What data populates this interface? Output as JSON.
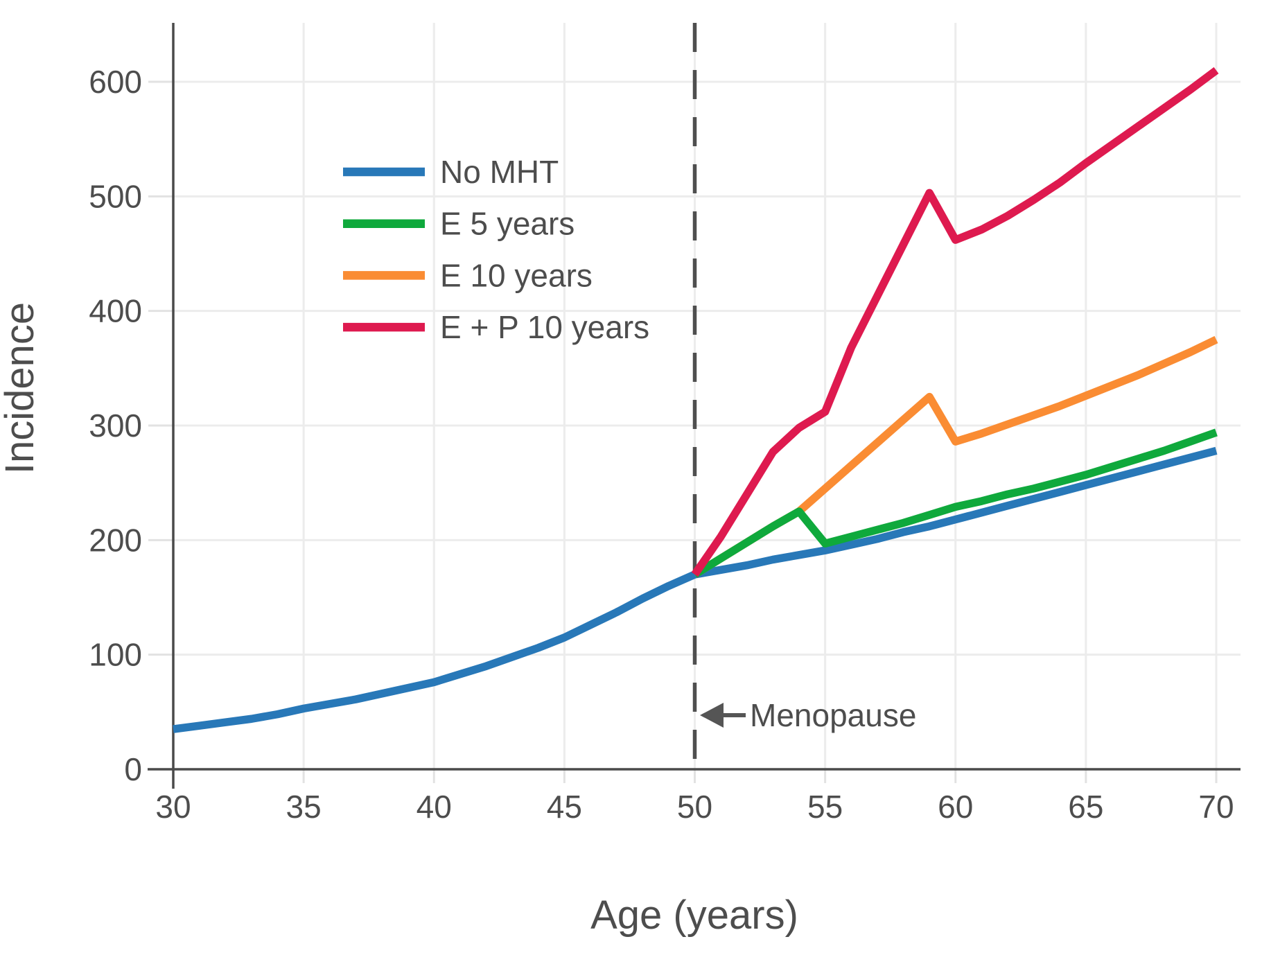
{
  "chart_data": {
    "type": "line",
    "title": "",
    "xlabel": "Age (years)",
    "ylabel": "Incidence",
    "x_ticks": [
      30,
      35,
      40,
      45,
      50,
      55,
      60,
      65,
      70
    ],
    "y_ticks": [
      0,
      100,
      200,
      300,
      400,
      500,
      600
    ],
    "xlim": [
      30,
      70.9
    ],
    "ylim": [
      0,
      651
    ],
    "grid": true,
    "legend_position": "upper-left-inside",
    "menopause_line_x": 50,
    "annotations": [
      {
        "text": "Menopause",
        "x": 50,
        "y": 47,
        "arrow": "points-left-at-dashed-line"
      }
    ],
    "series": [
      {
        "name": "No MHT",
        "color": "#2878B8",
        "points": [
          [
            30,
            35
          ],
          [
            31,
            38
          ],
          [
            32,
            41
          ],
          [
            33,
            44
          ],
          [
            34,
            48
          ],
          [
            35,
            53
          ],
          [
            36,
            57
          ],
          [
            37,
            61
          ],
          [
            38,
            66
          ],
          [
            39,
            71
          ],
          [
            40,
            76
          ],
          [
            41,
            83
          ],
          [
            42,
            90
          ],
          [
            43,
            98
          ],
          [
            44,
            106
          ],
          [
            45,
            115
          ],
          [
            46,
            126
          ],
          [
            47,
            137
          ],
          [
            48,
            149
          ],
          [
            49,
            160
          ],
          [
            50,
            170
          ],
          [
            51,
            174
          ],
          [
            52,
            178
          ],
          [
            53,
            183
          ],
          [
            54,
            187
          ],
          [
            55,
            191
          ],
          [
            56,
            196
          ],
          [
            57,
            201
          ],
          [
            58,
            207
          ],
          [
            59,
            212
          ],
          [
            60,
            218
          ],
          [
            61,
            224
          ],
          [
            62,
            230
          ],
          [
            63,
            236
          ],
          [
            64,
            242
          ],
          [
            65,
            248
          ],
          [
            66,
            254
          ],
          [
            67,
            260
          ],
          [
            68,
            266
          ],
          [
            69,
            272
          ],
          [
            70,
            278
          ]
        ]
      },
      {
        "name": "E 10 years",
        "color": "#FA8C33",
        "points": [
          [
            50,
            170
          ],
          [
            51,
            184
          ],
          [
            52,
            198
          ],
          [
            53,
            212
          ],
          [
            54,
            225
          ],
          [
            55,
            245
          ],
          [
            56,
            265
          ],
          [
            57,
            285
          ],
          [
            58,
            305
          ],
          [
            59,
            325
          ],
          [
            60,
            286
          ],
          [
            61,
            293
          ],
          [
            62,
            301
          ],
          [
            63,
            309
          ],
          [
            64,
            317
          ],
          [
            65,
            326
          ],
          [
            66,
            335
          ],
          [
            67,
            344
          ],
          [
            68,
            354
          ],
          [
            69,
            364
          ],
          [
            70,
            375
          ]
        ]
      },
      {
        "name": "E 5 years",
        "color": "#0FA93C",
        "points": [
          [
            50,
            170
          ],
          [
            51,
            184
          ],
          [
            52,
            198
          ],
          [
            53,
            212
          ],
          [
            54,
            225
          ],
          [
            55,
            197
          ],
          [
            56,
            203
          ],
          [
            57,
            209
          ],
          [
            58,
            215
          ],
          [
            59,
            222
          ],
          [
            60,
            229
          ],
          [
            61,
            234
          ],
          [
            62,
            240
          ],
          [
            63,
            245
          ],
          [
            64,
            251
          ],
          [
            65,
            257
          ],
          [
            66,
            264
          ],
          [
            67,
            271
          ],
          [
            68,
            278
          ],
          [
            69,
            286
          ],
          [
            70,
            294
          ]
        ]
      },
      {
        "name": "E + P 10 years",
        "color": "#DE1A4F",
        "points": [
          [
            50,
            170
          ],
          [
            51,
            203
          ],
          [
            52,
            240
          ],
          [
            53,
            277
          ],
          [
            54,
            298
          ],
          [
            55,
            312
          ],
          [
            56,
            368
          ],
          [
            57,
            413
          ],
          [
            58,
            458
          ],
          [
            59,
            503
          ],
          [
            60,
            462
          ],
          [
            61,
            471
          ],
          [
            62,
            483
          ],
          [
            63,
            497
          ],
          [
            64,
            512
          ],
          [
            65,
            529
          ],
          [
            66,
            545
          ],
          [
            67,
            561
          ],
          [
            68,
            577
          ],
          [
            69,
            593
          ],
          [
            70,
            610
          ]
        ]
      }
    ],
    "legend_order": [
      "No MHT",
      "E 5 years",
      "E 10 years",
      "E + P 10 years"
    ]
  },
  "style": {
    "background": "#ffffff",
    "grid_color": "#ececec",
    "tick_stub_color": "#e2e2e2",
    "spine_color": "#4a4a4a",
    "text_color": "#4d4d4d",
    "dashed_line_color": "#4f4f4f",
    "arrow_color": "#555555"
  }
}
